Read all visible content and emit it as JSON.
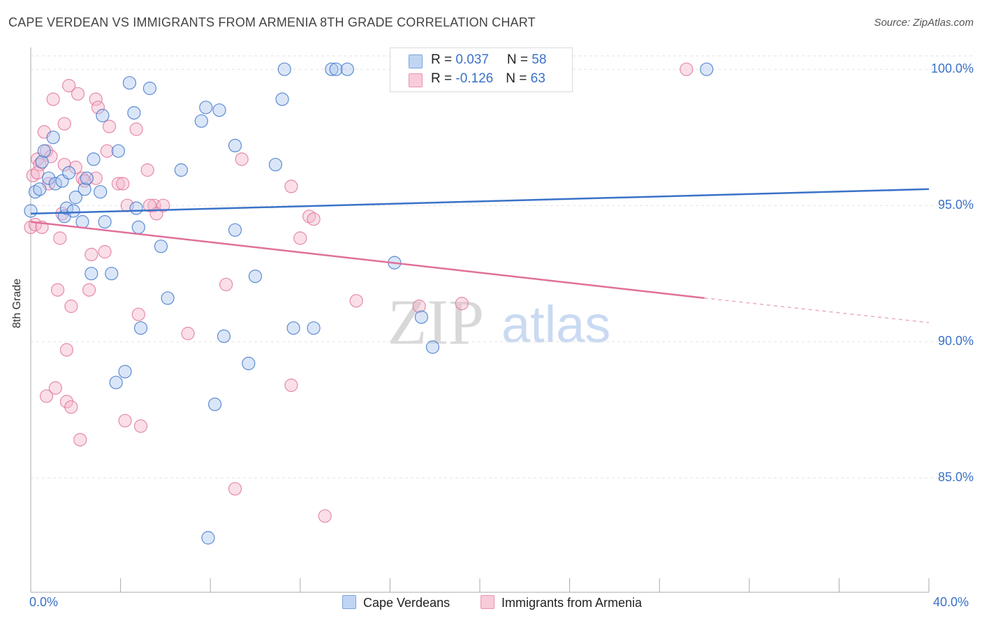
{
  "title": "CAPE VERDEAN VS IMMIGRANTS FROM ARMENIA 8TH GRADE CORRELATION CHART",
  "source": "Source: ZipAtlas.com",
  "watermark": {
    "zip": "ZIP",
    "atlas": "atlas"
  },
  "legend": {
    "blue": {
      "r_label": "R = ",
      "r_value": "0.037",
      "n_label": "N = ",
      "n_value": "58"
    },
    "pink": {
      "r_label": "R = ",
      "r_value": "-0.126",
      "n_label": "N = ",
      "n_value": "63"
    }
  },
  "colors": {
    "blue": "#3a72c8",
    "blue_fill": "#aec8ef",
    "pink": "#e0709a",
    "pink_fill": "#f5b8cc",
    "grid": "#e3e3e3",
    "axis_label": "#3a72c8"
  },
  "chart_data": {
    "type": "scatter",
    "title": "CAPE VERDEAN VS IMMIGRANTS FROM ARMENIA 8TH GRADE CORRELATION CHART",
    "xlabel": "",
    "ylabel": "8th Grade",
    "xlim": [
      0,
      40
    ],
    "ylim": [
      80.8,
      100.8
    ],
    "x_tick_labels": [
      "0.0%",
      "40.0%"
    ],
    "y_ticks": [
      85,
      90,
      95,
      100
    ],
    "y_tick_labels": [
      "85.0%",
      "90.0%",
      "95.0%",
      "100.0%"
    ],
    "grid": true,
    "legend_position": "top-center",
    "series": [
      {
        "name": "Cape Verdeans",
        "color": "#3a72c8",
        "trend": {
          "x": [
            0,
            40
          ],
          "y": [
            94.7,
            95.6
          ]
        },
        "points": [
          [
            0.0,
            94.8
          ],
          [
            0.2,
            95.5
          ],
          [
            0.4,
            95.6
          ],
          [
            0.5,
            96.6
          ],
          [
            0.6,
            97.0
          ],
          [
            0.8,
            96.0
          ],
          [
            1.0,
            97.5
          ],
          [
            1.1,
            95.8
          ],
          [
            1.4,
            95.9
          ],
          [
            1.5,
            94.6
          ],
          [
            1.6,
            94.9
          ],
          [
            1.7,
            96.2
          ],
          [
            1.9,
            94.8
          ],
          [
            2.0,
            95.3
          ],
          [
            2.3,
            94.4
          ],
          [
            2.4,
            95.6
          ],
          [
            2.5,
            96.0
          ],
          [
            2.7,
            92.5
          ],
          [
            2.8,
            96.7
          ],
          [
            3.1,
            95.5
          ],
          [
            3.2,
            98.3
          ],
          [
            3.3,
            94.4
          ],
          [
            3.6,
            92.5
          ],
          [
            3.8,
            88.5
          ],
          [
            3.9,
            97.0
          ],
          [
            4.2,
            88.9
          ],
          [
            4.4,
            99.5
          ],
          [
            4.6,
            98.4
          ],
          [
            4.7,
            94.9
          ],
          [
            4.8,
            94.2
          ],
          [
            4.9,
            90.5
          ],
          [
            5.3,
            99.3
          ],
          [
            5.8,
            93.5
          ],
          [
            6.1,
            91.6
          ],
          [
            6.7,
            96.3
          ],
          [
            7.6,
            98.1
          ],
          [
            7.8,
            98.6
          ],
          [
            7.9,
            82.8
          ],
          [
            8.2,
            87.7
          ],
          [
            8.4,
            98.5
          ],
          [
            8.6,
            90.2
          ],
          [
            9.1,
            97.2
          ],
          [
            9.1,
            94.1
          ],
          [
            9.7,
            89.2
          ],
          [
            10.0,
            92.4
          ],
          [
            10.9,
            96.5
          ],
          [
            11.2,
            98.9
          ],
          [
            11.3,
            100.0
          ],
          [
            11.7,
            90.5
          ],
          [
            12.6,
            90.5
          ],
          [
            13.4,
            100.0
          ],
          [
            13.6,
            100.0
          ],
          [
            14.1,
            100.0
          ],
          [
            16.2,
            92.9
          ],
          [
            17.4,
            90.9
          ],
          [
            17.9,
            89.8
          ],
          [
            22.8,
            100.0
          ],
          [
            30.1,
            100.0
          ]
        ]
      },
      {
        "name": "Immigrants from Armenia",
        "color": "#e0709a",
        "trend": {
          "x": [
            0,
            30.0
          ],
          "y": [
            94.4,
            91.6
          ]
        },
        "trend_dashed": {
          "x": [
            30.0,
            40
          ],
          "y": [
            91.6,
            90.7
          ]
        },
        "points": [
          [
            0.0,
            94.2
          ],
          [
            0.1,
            96.1
          ],
          [
            0.2,
            94.3
          ],
          [
            0.3,
            96.7
          ],
          [
            0.4,
            96.5
          ],
          [
            0.5,
            94.2
          ],
          [
            0.6,
            97.7
          ],
          [
            0.7,
            97.0
          ],
          [
            0.7,
            88.0
          ],
          [
            0.8,
            95.8
          ],
          [
            0.9,
            96.8
          ],
          [
            1.0,
            98.9
          ],
          [
            1.1,
            88.3
          ],
          [
            1.2,
            91.9
          ],
          [
            1.3,
            93.8
          ],
          [
            1.4,
            94.7
          ],
          [
            1.5,
            98.0
          ],
          [
            1.5,
            96.5
          ],
          [
            1.6,
            89.7
          ],
          [
            1.6,
            87.8
          ],
          [
            1.7,
            99.4
          ],
          [
            1.8,
            91.3
          ],
          [
            1.8,
            87.6
          ],
          [
            2.0,
            96.4
          ],
          [
            2.1,
            99.1
          ],
          [
            2.2,
            86.4
          ],
          [
            2.3,
            96.0
          ],
          [
            2.4,
            95.9
          ],
          [
            2.6,
            91.9
          ],
          [
            2.7,
            93.2
          ],
          [
            2.9,
            98.9
          ],
          [
            3.0,
            98.6
          ],
          [
            3.3,
            93.3
          ],
          [
            3.4,
            97.0
          ],
          [
            3.5,
            97.9
          ],
          [
            3.9,
            95.8
          ],
          [
            4.1,
            95.8
          ],
          [
            4.2,
            87.1
          ],
          [
            4.3,
            95.0
          ],
          [
            4.7,
            97.8
          ],
          [
            4.8,
            91.0
          ],
          [
            4.9,
            86.9
          ],
          [
            5.2,
            96.3
          ],
          [
            5.5,
            95.0
          ],
          [
            5.6,
            94.7
          ],
          [
            5.9,
            95.0
          ],
          [
            7.0,
            90.3
          ],
          [
            8.7,
            92.1
          ],
          [
            9.1,
            84.6
          ],
          [
            9.4,
            96.7
          ],
          [
            11.6,
            95.7
          ],
          [
            11.6,
            88.4
          ],
          [
            12.0,
            93.8
          ],
          [
            12.4,
            94.6
          ],
          [
            12.6,
            94.5
          ],
          [
            13.1,
            83.6
          ],
          [
            14.5,
            91.5
          ],
          [
            17.3,
            91.3
          ],
          [
            19.2,
            91.4
          ],
          [
            29.2,
            100.0
          ],
          [
            0.3,
            96.2
          ],
          [
            2.9,
            96.0
          ],
          [
            5.3,
            95.0
          ]
        ]
      }
    ]
  }
}
